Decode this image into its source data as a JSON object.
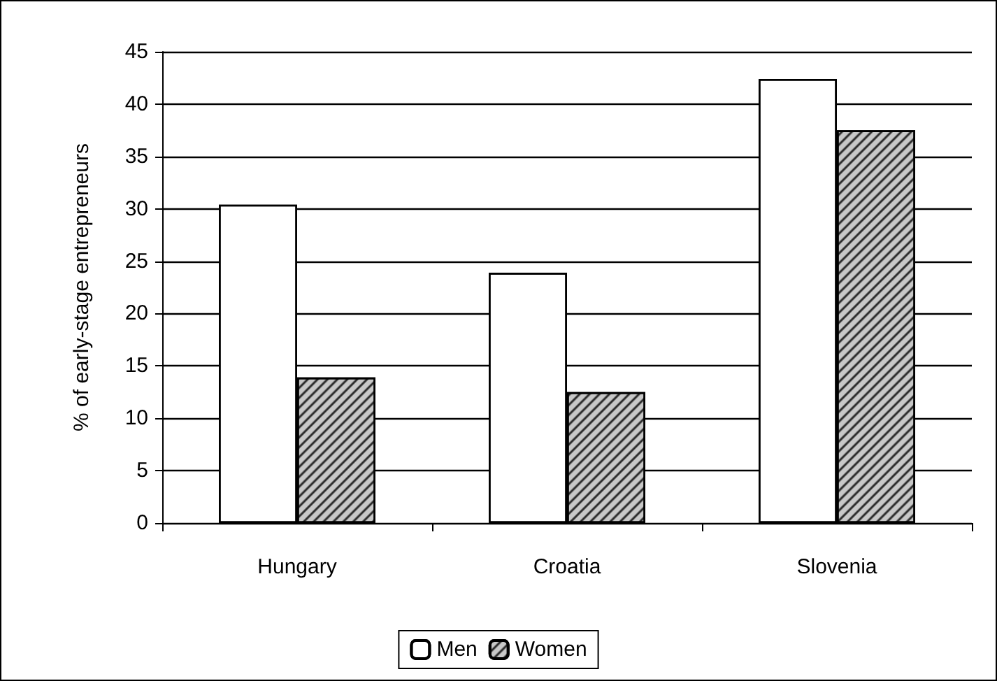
{
  "chart_data": {
    "type": "bar",
    "ylabel": "% of early-stage entrepreneurs",
    "categories": [
      "Hungary",
      "Croatia",
      "Slovenia"
    ],
    "series": [
      {
        "name": "Men",
        "color": "#ffffff",
        "values": [
          30.4,
          23.9,
          42.4
        ]
      },
      {
        "name": "Women",
        "color": "#c8c8c8",
        "values": [
          13.9,
          12.5,
          37.5
        ]
      }
    ],
    "ylim": [
      0,
      45
    ],
    "yticks": [
      0,
      5,
      10,
      15,
      20,
      25,
      30,
      35,
      40,
      45
    ],
    "grid": "y",
    "legend": "bottom"
  }
}
